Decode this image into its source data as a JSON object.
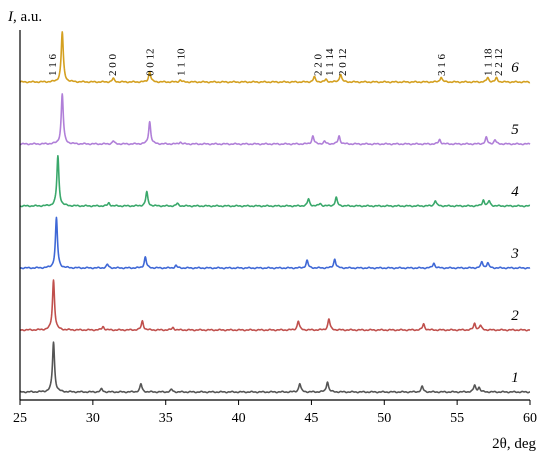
{
  "chart_data": {
    "type": "line",
    "title": "",
    "ylabel_italic": "I",
    "ylabel_rest": ", a.u.",
    "xlabel": "2θ, deg",
    "xlim": [
      25,
      60
    ],
    "x_ticks": [
      25,
      30,
      35,
      40,
      45,
      50,
      55,
      60
    ],
    "x_tick_labels": [
      "25",
      "30",
      "35",
      "40",
      "45",
      "50",
      "55",
      "60"
    ],
    "grid": false,
    "legend": "none",
    "peak_labels": [
      {
        "x": 27.2,
        "text": "1 1 6"
      },
      {
        "x": 31.3,
        "text": "2 0 0"
      },
      {
        "x": 33.9,
        "text": "0 0 12"
      },
      {
        "x": 36.0,
        "text": "1 1 10"
      },
      {
        "x": 45.4,
        "text": "2 2 0"
      },
      {
        "x": 46.2,
        "text": "1 1 14"
      },
      {
        "x": 47.1,
        "text": "2 0 12"
      },
      {
        "x": 53.9,
        "text": "3 1 6"
      },
      {
        "x": 57.1,
        "text": "1 1 18"
      },
      {
        "x": 57.8,
        "text": "2 2 12"
      }
    ],
    "series": [
      {
        "label": "1",
        "color": "#555555",
        "peaks": [
          [
            27.3,
            100
          ],
          [
            30.6,
            6
          ],
          [
            33.3,
            16
          ],
          [
            35.4,
            5
          ],
          [
            44.2,
            17
          ],
          [
            46.1,
            21
          ],
          [
            52.6,
            11
          ],
          [
            56.2,
            13
          ],
          [
            56.5,
            9
          ]
        ]
      },
      {
        "label": "2",
        "color": "#c0504d",
        "peaks": [
          [
            27.3,
            100
          ],
          [
            30.7,
            7
          ],
          [
            33.4,
            18
          ],
          [
            35.5,
            5
          ],
          [
            44.1,
            18
          ],
          [
            46.2,
            22
          ],
          [
            52.7,
            12
          ],
          [
            56.2,
            13
          ],
          [
            56.6,
            9
          ]
        ]
      },
      {
        "label": "3",
        "color": "#3f68d6",
        "peaks": [
          [
            27.5,
            100
          ],
          [
            31.0,
            7
          ],
          [
            33.6,
            22
          ],
          [
            35.7,
            5
          ],
          [
            44.7,
            15
          ],
          [
            46.6,
            18
          ],
          [
            53.4,
            10
          ],
          [
            56.7,
            12
          ],
          [
            57.1,
            10
          ]
        ]
      },
      {
        "label": "4",
        "color": "#3aa86b",
        "peaks": [
          [
            27.6,
            100
          ],
          [
            31.1,
            6
          ],
          [
            33.7,
            28
          ],
          [
            35.8,
            5
          ],
          [
            44.8,
            14
          ],
          [
            45.6,
            5
          ],
          [
            46.7,
            17
          ],
          [
            53.5,
            11
          ],
          [
            56.8,
            12
          ],
          [
            57.2,
            10
          ]
        ]
      },
      {
        "label": "5",
        "color": "#b07fd8",
        "peaks": [
          [
            27.9,
            100
          ],
          [
            31.4,
            6
          ],
          [
            33.9,
            45
          ],
          [
            36.0,
            4
          ],
          [
            45.1,
            16
          ],
          [
            45.9,
            5
          ],
          [
            46.9,
            16
          ],
          [
            53.8,
            9
          ],
          [
            57.0,
            13
          ],
          [
            57.6,
            8
          ]
        ]
      },
      {
        "label": "6",
        "color": "#d4a020",
        "peaks": [
          [
            27.9,
            100
          ],
          [
            31.4,
            7
          ],
          [
            33.9,
            21
          ],
          [
            36.0,
            4
          ],
          [
            45.2,
            10
          ],
          [
            46.0,
            5
          ],
          [
            47.0,
            16
          ],
          [
            53.9,
            10
          ],
          [
            57.1,
            9
          ],
          [
            57.7,
            8
          ]
        ]
      }
    ]
  }
}
